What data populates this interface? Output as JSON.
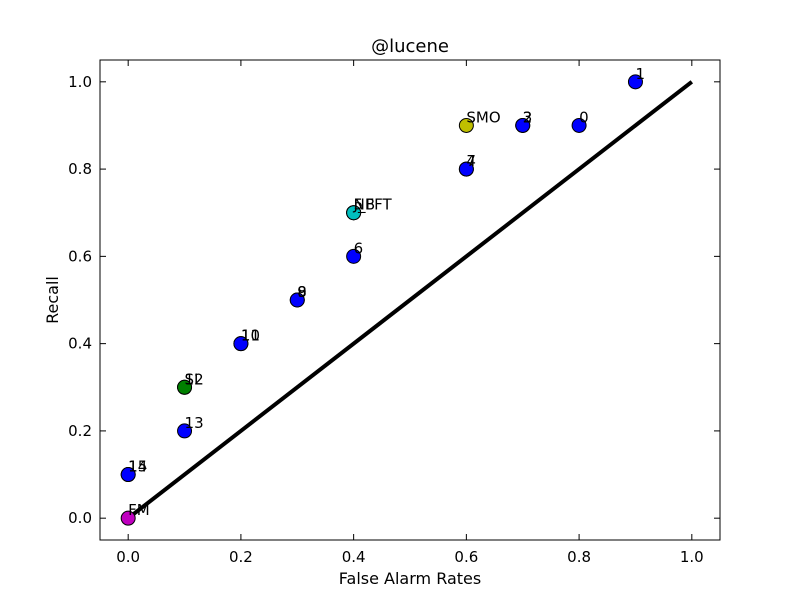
{
  "chart_data": {
    "type": "scatter",
    "title": "@lucene",
    "xlabel": "False Alarm Rates",
    "ylabel": "Recall",
    "xlim": [
      -0.05,
      1.05
    ],
    "ylim": [
      -0.05,
      1.05
    ],
    "xticks": [
      0.0,
      0.2,
      0.4,
      0.6,
      0.8,
      1.0
    ],
    "xtick_labels": [
      "0.0",
      "0.2",
      "0.4",
      "0.6",
      "0.8",
      "1.0"
    ],
    "yticks": [
      0.0,
      0.2,
      0.4,
      0.6,
      0.8,
      1.0
    ],
    "ytick_labels": [
      "0.0",
      "0.2",
      "0.4",
      "0.6",
      "0.8",
      "1.0"
    ],
    "grid": false,
    "reference_line": {
      "x": [
        0.0,
        1.0
      ],
      "y": [
        0.0,
        1.0
      ],
      "color": "#000000"
    },
    "points": [
      {
        "x": 0.9,
        "y": 1.0,
        "label": "1",
        "color": "#0000ff"
      },
      {
        "x": 0.8,
        "y": 0.9,
        "label": "0",
        "color": "#0000ff"
      },
      {
        "x": 0.7,
        "y": 0.9,
        "label": "3",
        "color": "#0000ff"
      },
      {
        "x": 0.7,
        "y": 0.9,
        "label": "2",
        "color": "#0000ff"
      },
      {
        "x": 0.6,
        "y": 0.9,
        "label": "SMO",
        "color": "#bfbf00"
      },
      {
        "x": 0.6,
        "y": 0.8,
        "label": "7",
        "color": "#0000ff"
      },
      {
        "x": 0.6,
        "y": 0.8,
        "label": "4",
        "color": "#0000ff"
      },
      {
        "x": 0.4,
        "y": 0.7,
        "label": "5",
        "color": "#0000ff"
      },
      {
        "x": 0.4,
        "y": 0.7,
        "label": "NB",
        "color": "#00bfbf"
      },
      {
        "x": 0.4,
        "y": 0.7,
        "label": "J_FFT",
        "color": "#00bfbf"
      },
      {
        "x": 0.4,
        "y": 0.6,
        "label": "6",
        "color": "#0000ff"
      },
      {
        "x": 0.3,
        "y": 0.5,
        "label": "9",
        "color": "#0000ff"
      },
      {
        "x": 0.3,
        "y": 0.5,
        "label": "8",
        "color": "#0000ff"
      },
      {
        "x": 0.2,
        "y": 0.4,
        "label": "11",
        "color": "#0000ff"
      },
      {
        "x": 0.2,
        "y": 0.4,
        "label": "10",
        "color": "#0000ff"
      },
      {
        "x": 0.1,
        "y": 0.3,
        "label": "SL",
        "color": "#008000"
      },
      {
        "x": 0.1,
        "y": 0.3,
        "label": "12",
        "color": "#008000"
      },
      {
        "x": 0.1,
        "y": 0.2,
        "label": "13",
        "color": "#0000ff"
      },
      {
        "x": 0.0,
        "y": 0.1,
        "label": "15",
        "color": "#0000ff"
      },
      {
        "x": 0.0,
        "y": 0.1,
        "label": "14",
        "color": "#0000ff"
      },
      {
        "x": 0.0,
        "y": 0.0,
        "label": "FM",
        "color": "#bf00bf"
      }
    ]
  }
}
